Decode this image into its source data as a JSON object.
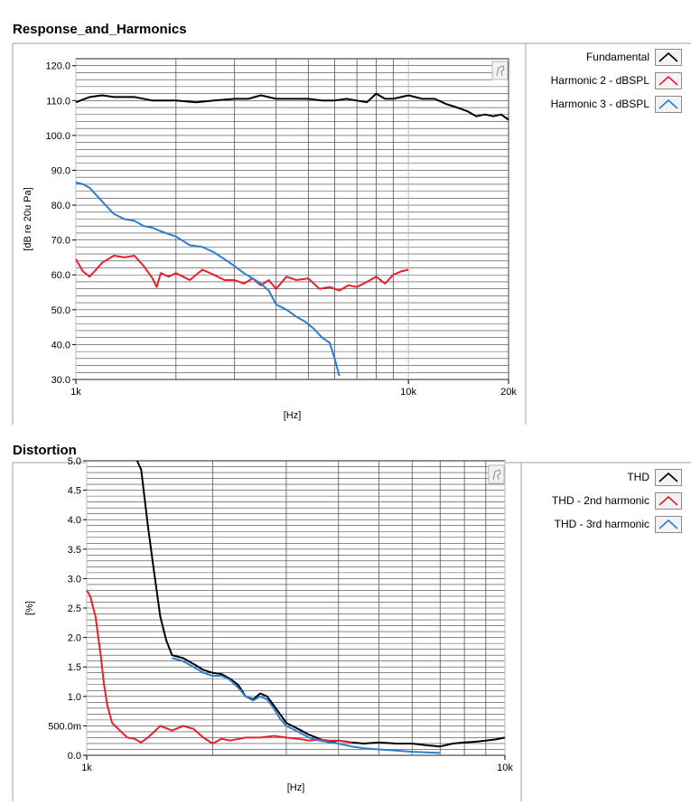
{
  "chart_data": [
    {
      "type": "line",
      "title": "Response_and_Harmonics",
      "xlabel": "[Hz]",
      "ylabel": "[dB re 20u Pa]",
      "x_scale": "log",
      "xlim": [
        1000,
        20000
      ],
      "ylim": [
        30,
        122
      ],
      "x_ticks": [
        {
          "value": 1000,
          "label": "1k"
        },
        {
          "value": 10000,
          "label": "10k"
        },
        {
          "value": 20000,
          "label": "20k"
        }
      ],
      "y_ticks": [
        {
          "value": 30,
          "label": "30.0"
        },
        {
          "value": 40,
          "label": "40.0"
        },
        {
          "value": 50,
          "label": "50.0"
        },
        {
          "value": 60,
          "label": "60.0"
        },
        {
          "value": 70,
          "label": "70.0"
        },
        {
          "value": 80,
          "label": "80.0"
        },
        {
          "value": 90,
          "label": "90.0"
        },
        {
          "value": 100,
          "label": "100.0"
        },
        {
          "value": 110,
          "label": "110.0"
        },
        {
          "value": 120,
          "label": "120.0"
        }
      ],
      "grid": true,
      "legend_position": "right",
      "series": [
        {
          "name": "Fundamental",
          "color": "#000000",
          "x": [
            1000,
            1100,
            1200,
            1300,
            1500,
            1700,
            2000,
            2300,
            2600,
            3000,
            3300,
            3600,
            4000,
            4500,
            5000,
            5500,
            6000,
            6500,
            7000,
            7500,
            8000,
            8500,
            9000,
            10000,
            11000,
            12000,
            13000,
            14000,
            15000,
            16000,
            17000,
            18000,
            19000,
            20000
          ],
          "y": [
            109.5,
            111,
            111.5,
            111,
            111,
            110,
            110,
            109.5,
            110,
            110.5,
            110.5,
            111.5,
            110.5,
            110.5,
            110.5,
            110,
            110,
            110.5,
            110,
            109.5,
            112,
            110.5,
            110.5,
            111.5,
            110.5,
            110.5,
            109,
            108,
            107,
            105.5,
            106,
            105.5,
            106,
            104.5
          ]
        },
        {
          "name": "Harmonic 2 - dBSPL",
          "color": "#e8202a",
          "x": [
            1000,
            1050,
            1100,
            1150,
            1200,
            1300,
            1400,
            1500,
            1600,
            1700,
            1750,
            1800,
            1900,
            2000,
            2200,
            2400,
            2600,
            2800,
            3000,
            3200,
            3400,
            3600,
            3800,
            4000,
            4300,
            4600,
            5000,
            5400,
            5800,
            6200,
            6600,
            7000,
            7500,
            8000,
            8500,
            9000,
            9500,
            10000
          ],
          "y": [
            64.5,
            61,
            59.5,
            61.5,
            63.5,
            65.5,
            65,
            65.5,
            62.5,
            59,
            56.5,
            60.5,
            59.5,
            60.5,
            58.5,
            61.5,
            60,
            58.5,
            58.5,
            57.5,
            59,
            57,
            58.5,
            56,
            59.5,
            58.5,
            59,
            56,
            56.5,
            55.5,
            57,
            56.5,
            58,
            59.5,
            57.5,
            60,
            61,
            61.5
          ]
        },
        {
          "name": "Harmonic 3 - dBSPL",
          "color": "#2b7ed0",
          "x": [
            1000,
            1050,
            1100,
            1200,
            1300,
            1400,
            1500,
            1600,
            1700,
            1800,
            2000,
            2200,
            2400,
            2600,
            2800,
            3000,
            3200,
            3400,
            3600,
            3800,
            4000,
            4300,
            4600,
            4900,
            5200,
            5500,
            5800,
            6000,
            6200
          ],
          "y": [
            86.5,
            86,
            85,
            81,
            77.5,
            76,
            75.5,
            74,
            73.5,
            72.5,
            71,
            68.5,
            68,
            66.5,
            64.5,
            62.5,
            60.5,
            59,
            57.5,
            55.5,
            51.5,
            50,
            48,
            46.5,
            44.5,
            42,
            40.5,
            36,
            31
          ]
        }
      ]
    },
    {
      "type": "line",
      "title": "Distortion",
      "xlabel": "[Hz]",
      "ylabel": "[%]",
      "x_scale": "log",
      "xlim": [
        1000,
        10000
      ],
      "ylim": [
        0,
        5
      ],
      "x_ticks": [
        {
          "value": 1000,
          "label": "1k"
        },
        {
          "value": 10000,
          "label": "10k"
        }
      ],
      "y_ticks": [
        {
          "value": 0,
          "label": "0.0"
        },
        {
          "value": 0.5,
          "label": "500.0m"
        },
        {
          "value": 1,
          "label": "1.0"
        },
        {
          "value": 1.5,
          "label": "1.5"
        },
        {
          "value": 2,
          "label": "2.0"
        },
        {
          "value": 2.5,
          "label": "2.5"
        },
        {
          "value": 3,
          "label": "3.0"
        },
        {
          "value": 3.5,
          "label": "3.5"
        },
        {
          "value": 4,
          "label": "4.0"
        },
        {
          "value": 4.5,
          "label": "4.5"
        },
        {
          "value": 5,
          "label": "5.0"
        }
      ],
      "grid": true,
      "legend_position": "right",
      "series": [
        {
          "name": "THD",
          "color": "#000000",
          "x": [
            1320,
            1350,
            1400,
            1450,
            1500,
            1550,
            1600,
            1700,
            1800,
            1900,
            2000,
            2100,
            2200,
            2300,
            2400,
            2500,
            2600,
            2700,
            2800,
            2900,
            3000,
            3200,
            3400,
            3600,
            3800,
            4000,
            4300,
            4600,
            5000,
            5500,
            6000,
            6500,
            7000,
            7500,
            8000,
            8500,
            9000,
            9500,
            10000
          ],
          "y": [
            5.0,
            4.85,
            3.9,
            3.1,
            2.35,
            1.95,
            1.7,
            1.65,
            1.55,
            1.45,
            1.4,
            1.38,
            1.3,
            1.2,
            1.0,
            0.95,
            1.05,
            1.0,
            0.85,
            0.7,
            0.55,
            0.45,
            0.35,
            0.28,
            0.22,
            0.25,
            0.22,
            0.2,
            0.22,
            0.2,
            0.2,
            0.17,
            0.15,
            0.2,
            0.22,
            0.23,
            0.25,
            0.27,
            0.3
          ]
        },
        {
          "name": "THD - 2nd harmonic",
          "color": "#e8202a",
          "x": [
            1000,
            1020,
            1050,
            1080,
            1100,
            1120,
            1150,
            1200,
            1250,
            1300,
            1350,
            1400,
            1450,
            1500,
            1600,
            1700,
            1800,
            1900,
            2000,
            2100,
            2200,
            2400,
            2600,
            2800,
            3000,
            3200,
            3400,
            3600,
            3800,
            4000,
            4300
          ],
          "y": [
            2.8,
            2.7,
            2.35,
            1.7,
            1.2,
            0.85,
            0.55,
            0.42,
            0.3,
            0.28,
            0.22,
            0.3,
            0.4,
            0.5,
            0.42,
            0.5,
            0.45,
            0.3,
            0.2,
            0.28,
            0.25,
            0.3,
            0.3,
            0.33,
            0.3,
            0.28,
            0.25,
            0.27,
            0.25,
            0.25,
            0.22
          ]
        },
        {
          "name": "THD - 3rd harmonic",
          "color": "#2b7ed0",
          "x": [
            1600,
            1700,
            1800,
            1900,
            2000,
            2100,
            2200,
            2300,
            2400,
            2500,
            2600,
            2700,
            2800,
            2900,
            3000,
            3200,
            3400,
            3600,
            3800,
            4000,
            4300,
            4600,
            5000,
            5500,
            6000,
            6500,
            7000
          ],
          "y": [
            1.65,
            1.6,
            1.5,
            1.4,
            1.35,
            1.35,
            1.28,
            1.15,
            1.0,
            0.93,
            1.0,
            0.95,
            0.8,
            0.62,
            0.5,
            0.4,
            0.3,
            0.25,
            0.22,
            0.2,
            0.15,
            0.12,
            0.1,
            0.08,
            0.06,
            0.05,
            0.04
          ]
        }
      ]
    }
  ]
}
